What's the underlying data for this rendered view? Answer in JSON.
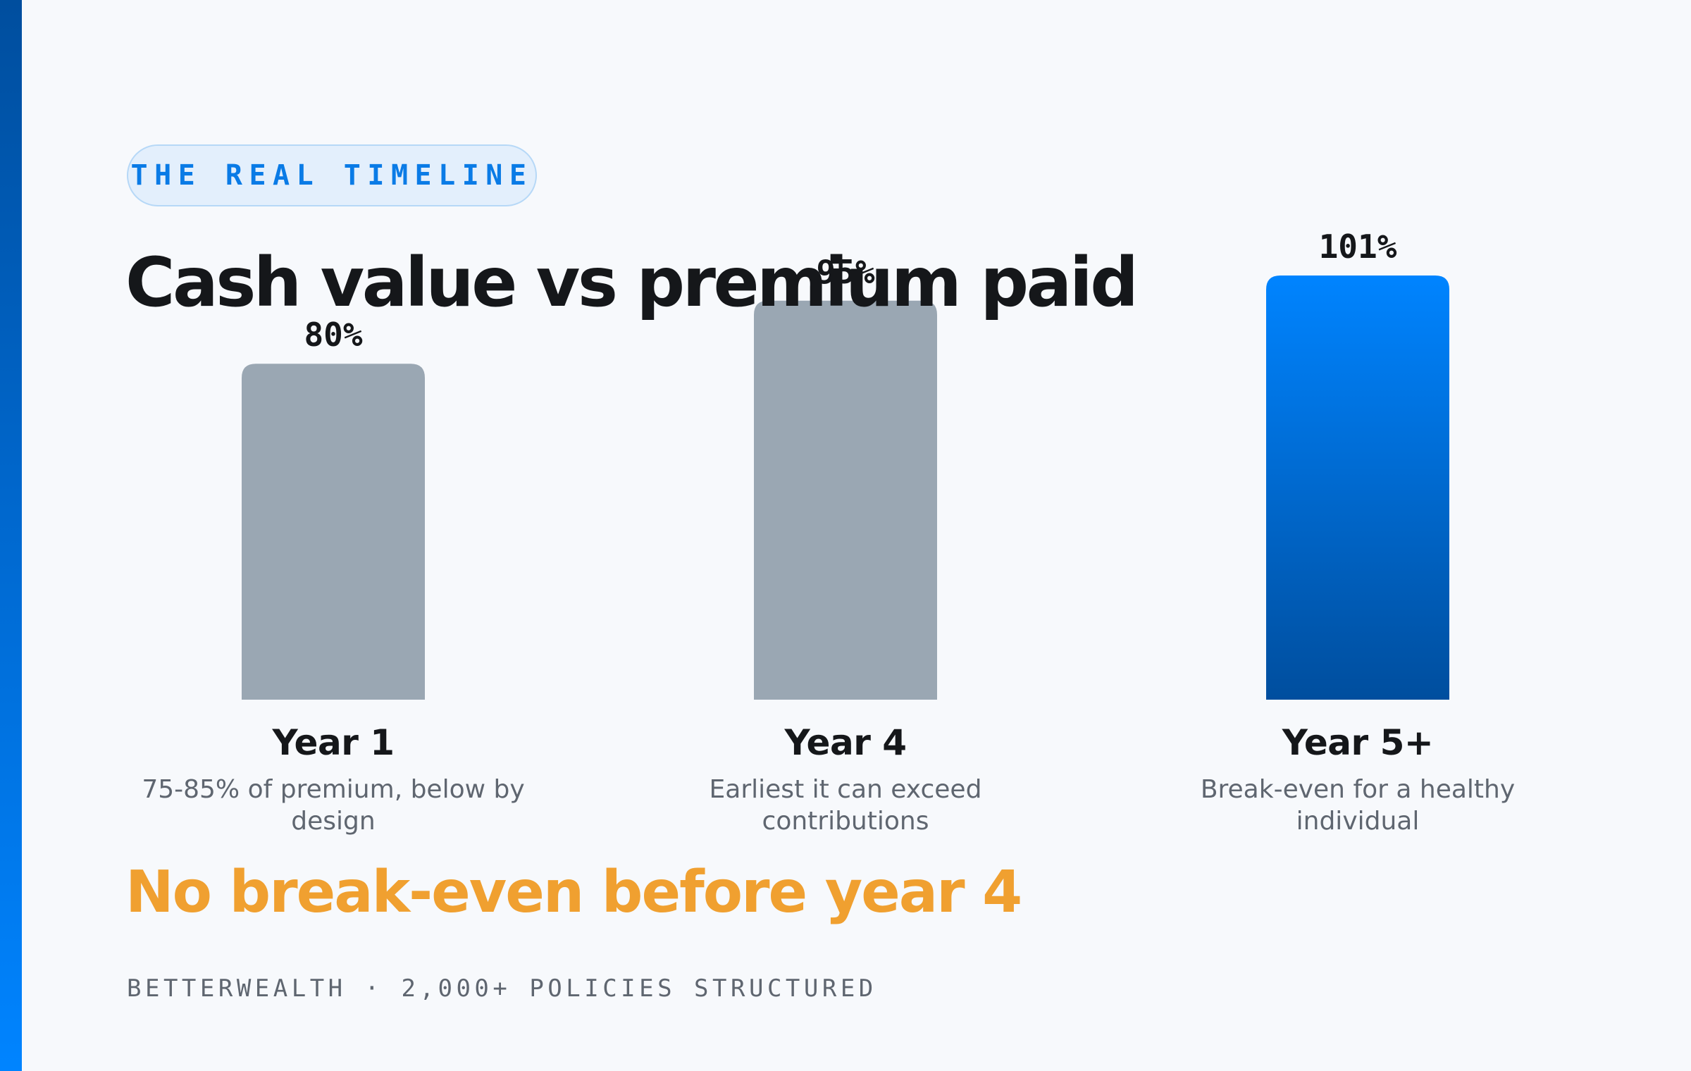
{
  "eyebrow": "THE REAL TIMELINE",
  "title": "Cash value vs premium paid",
  "headline": "No break-even before year 4",
  "footer": "BETTERWEALTH · 2,000+ POLICIES STRUCTURED",
  "colors": {
    "accent": "#0084FF",
    "accent_dark": "#004E9E",
    "muted_bar": "#9AA7B3",
    "headline": "#F0A030"
  },
  "chart_data": {
    "type": "bar",
    "categories": [
      "Year 1",
      "Year 4",
      "Year 5+"
    ],
    "values": [
      80,
      95,
      101
    ],
    "value_labels": [
      "80%",
      "95%",
      "101%"
    ],
    "descriptions": [
      "75-85% of premium, below by design",
      "Earliest it can exceed contributions",
      "Break-even for a healthy individual"
    ],
    "highlight_index": 2,
    "ylim": [
      0,
      101
    ],
    "grid": false,
    "title": "Cash value vs premium paid",
    "xlabel": "",
    "ylabel": ""
  }
}
